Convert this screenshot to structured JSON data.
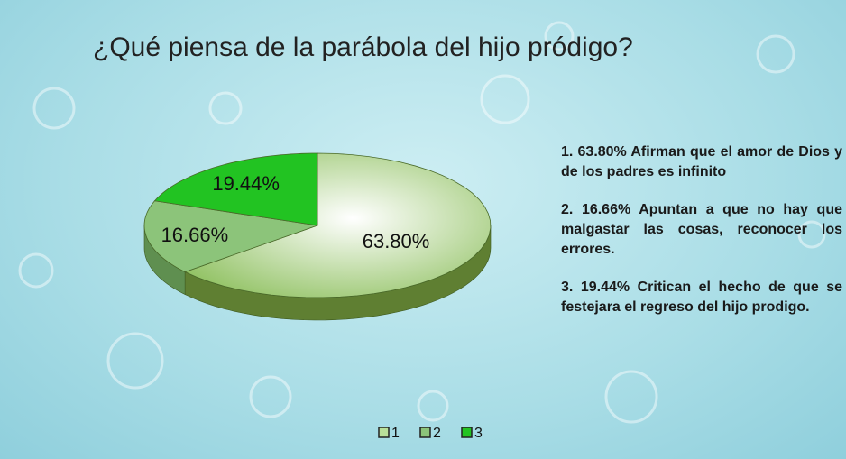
{
  "chart_data": {
    "type": "pie",
    "title": "¿Qué piensa de la parábola del hijo pródigo?",
    "categories": [
      "1",
      "2",
      "3"
    ],
    "values": [
      63.8,
      16.66,
      19.44
    ],
    "value_labels": [
      "63.80%",
      "16.66%",
      "19.44%"
    ],
    "colors": [
      "#b9e09a",
      "#8cc47a",
      "#22c322"
    ],
    "side_colors": [
      "#5f7f32",
      "#5f8f50",
      "#169016"
    ],
    "legend": "bottom",
    "notes": [
      "1. 63.80% Afirman que el amor de Dios y de los padres es infinito",
      "2. 16.66% Apuntan a que no hay que malgastar las cosas, reconocer los errores.",
      "3. 19.44% Critican el hecho de que se festejara el regreso del hijo prodigo."
    ]
  }
}
